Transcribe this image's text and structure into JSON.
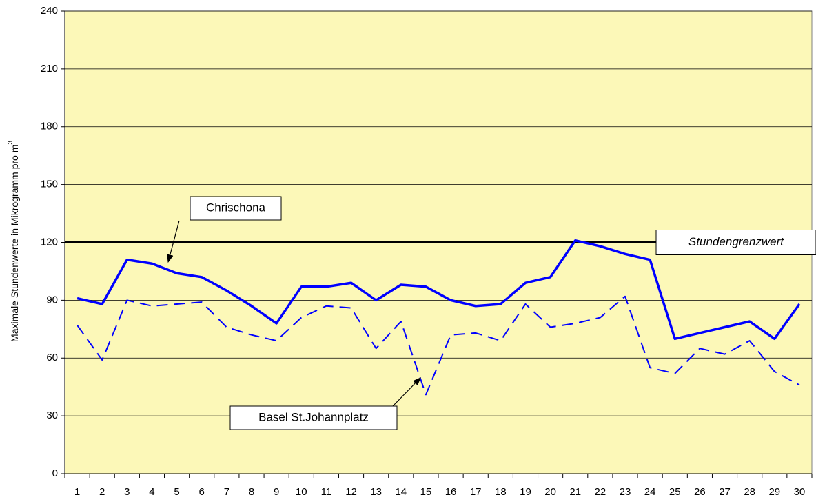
{
  "chart_data": {
    "type": "line",
    "y_label": {
      "text": "Maximale Stundenwerte in Mikrogramm pro m",
      "superscript": "3"
    },
    "categories": [
      "1",
      "2",
      "3",
      "4",
      "5",
      "6",
      "7",
      "8",
      "9",
      "10",
      "11",
      "12",
      "13",
      "14",
      "15",
      "16",
      "17",
      "18",
      "19",
      "20",
      "21",
      "22",
      "23",
      "24",
      "25",
      "26",
      "27",
      "28",
      "29",
      "30"
    ],
    "series": [
      {
        "name": "Chrischona",
        "color": "#0000ff",
        "dash": false,
        "values": [
          91,
          88,
          111,
          109,
          104,
          102,
          95,
          87,
          78,
          97,
          97,
          99,
          90,
          98,
          97,
          90,
          87,
          88,
          99,
          102,
          121,
          118,
          114,
          111,
          70,
          73,
          76,
          79,
          70,
          88
        ]
      },
      {
        "name": "Basel St.Johannplatz",
        "color": "#0000ff",
        "dash": true,
        "values": [
          77,
          59,
          90,
          87,
          88,
          89,
          76,
          72,
          69,
          81,
          87,
          86,
          65,
          79,
          41,
          72,
          73,
          69,
          88,
          76,
          78,
          81,
          92,
          55,
          52,
          65,
          62,
          69,
          53,
          46
        ]
      }
    ],
    "threshold": {
      "value": 120,
      "label": "Stundengrenzwert",
      "color": "#000000"
    },
    "ylim": [
      0,
      240
    ],
    "yticks": [
      0,
      30,
      60,
      90,
      120,
      150,
      180,
      210,
      240
    ],
    "grid": true,
    "background": "#fcf8b8"
  }
}
